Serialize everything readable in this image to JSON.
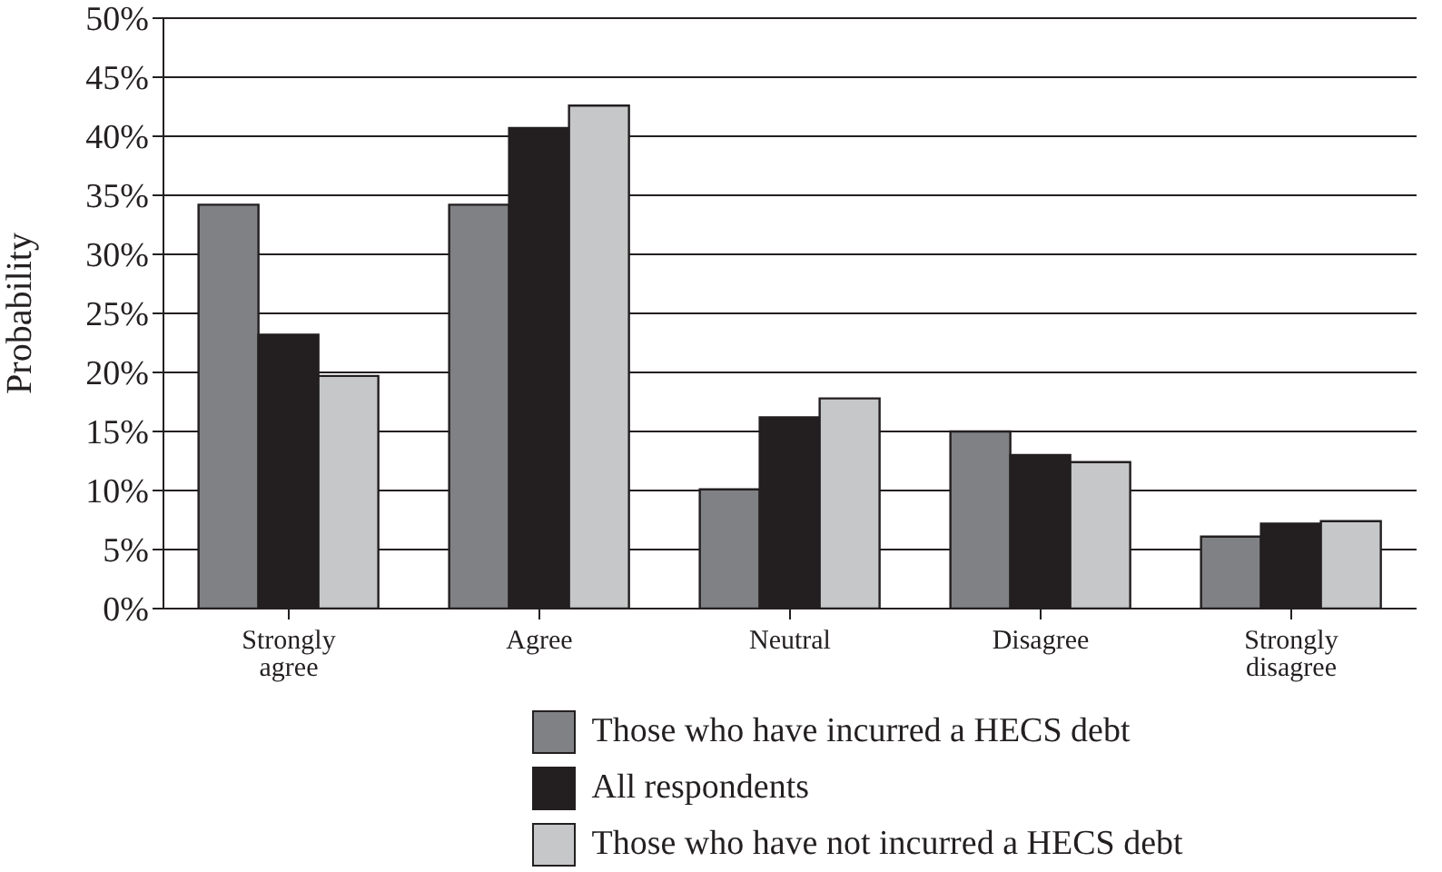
{
  "chart_data": {
    "type": "bar",
    "ylabel": "Probability",
    "categories": [
      "Strongly agree",
      "Agree",
      "Neutral",
      "Disagree",
      "Strongly disagree"
    ],
    "series": [
      {
        "name": "Those who have incurred a HECS debt",
        "color": "#808184",
        "values": [
          34.2,
          34.2,
          10.1,
          15.0,
          6.1
        ]
      },
      {
        "name": "All respondents",
        "color": "#231f20",
        "values": [
          23.2,
          40.7,
          16.2,
          13.0,
          7.2
        ]
      },
      {
        "name": "Those who have not incurred a HECS debt",
        "color": "#c6c7c9",
        "values": [
          19.7,
          42.6,
          17.8,
          12.4,
          7.4
        ]
      }
    ],
    "ylim": [
      0,
      50
    ],
    "yticks": [
      {
        "value": 0,
        "label": "0%"
      },
      {
        "value": 5,
        "label": "5%"
      },
      {
        "value": 10,
        "label": "10%"
      },
      {
        "value": 15,
        "label": "15%"
      },
      {
        "value": 20,
        "label": "20%"
      },
      {
        "value": 25,
        "label": "25%"
      },
      {
        "value": 30,
        "label": "30%"
      },
      {
        "value": 35,
        "label": "35%"
      },
      {
        "value": 40,
        "label": "40%"
      },
      {
        "value": 45,
        "label": "45%"
      },
      {
        "value": 50,
        "label": "50%"
      }
    ],
    "grid": "y",
    "legend": "bottom"
  }
}
